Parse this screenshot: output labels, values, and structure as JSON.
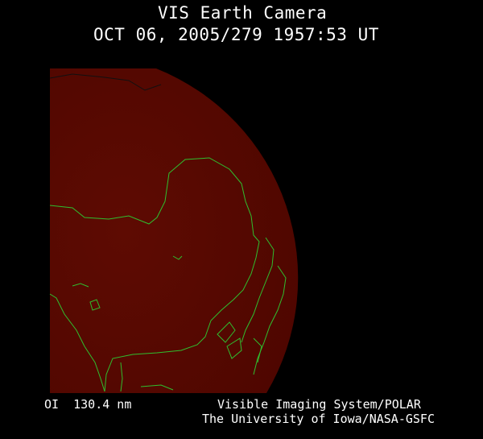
{
  "header": {
    "title": "VIS Earth Camera",
    "timestamp": "OCT 06, 2005/279 1957:53 UT"
  },
  "footer": {
    "wavelength": "OI  130.4 nm",
    "instrument": "Visible Imaging System/POLAR",
    "institution": "The University of Iowa/NASA-GSFC"
  },
  "colors": {
    "earth_disk": "#560800",
    "coastlines": "#2fbf2f",
    "background": "#000000",
    "text": "#ffffff"
  }
}
